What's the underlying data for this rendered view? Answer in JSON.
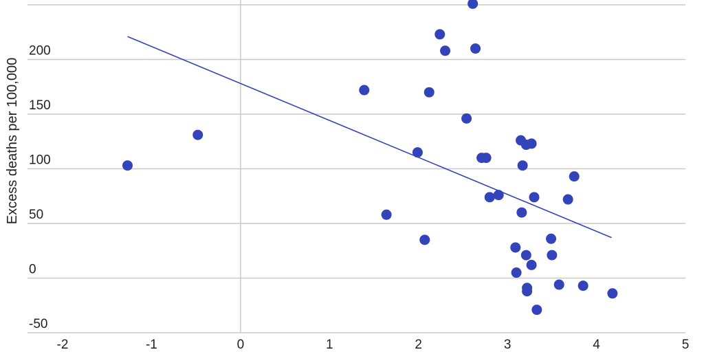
{
  "chart_data": {
    "type": "scatter",
    "title": "",
    "xlabel": "",
    "ylabel": "Excess deaths per 100,000",
    "xlim": [
      -2,
      5
    ],
    "ylim": [
      -50,
      250
    ],
    "x_ticks": [
      "-2",
      "-1",
      "0",
      "1",
      "2",
      "3",
      "4",
      "5"
    ],
    "y_ticks": [
      "-50",
      "0",
      "50",
      "100",
      "150",
      "200"
    ],
    "grid": "horizontal",
    "legend": "none",
    "point_color": "#3344bb",
    "trend_color": "#3344bb",
    "trendline": {
      "x": [
        -1.27,
        4.17
      ],
      "y": [
        221,
        37
      ]
    },
    "points": [
      {
        "x": -1.27,
        "y": 103
      },
      {
        "x": -0.48,
        "y": 131
      },
      {
        "x": 1.39,
        "y": 172
      },
      {
        "x": 1.64,
        "y": 58
      },
      {
        "x": 1.99,
        "y": 115
      },
      {
        "x": 2.07,
        "y": 35
      },
      {
        "x": 2.12,
        "y": 170
      },
      {
        "x": 2.24,
        "y": 223
      },
      {
        "x": 2.3,
        "y": 208
      },
      {
        "x": 2.54,
        "y": 146
      },
      {
        "x": 2.61,
        "y": 251
      },
      {
        "x": 2.64,
        "y": 210
      },
      {
        "x": 2.71,
        "y": 110
      },
      {
        "x": 2.76,
        "y": 110
      },
      {
        "x": 2.8,
        "y": 74
      },
      {
        "x": 2.9,
        "y": 76
      },
      {
        "x": 3.09,
        "y": 28
      },
      {
        "x": 3.1,
        "y": 5
      },
      {
        "x": 3.15,
        "y": 126
      },
      {
        "x": 3.16,
        "y": 60
      },
      {
        "x": 3.17,
        "y": 103
      },
      {
        "x": 3.21,
        "y": 122
      },
      {
        "x": 3.21,
        "y": 21
      },
      {
        "x": 3.22,
        "y": -9
      },
      {
        "x": 3.22,
        "y": -12
      },
      {
        "x": 3.27,
        "y": 123
      },
      {
        "x": 3.27,
        "y": 12
      },
      {
        "x": 3.3,
        "y": 74
      },
      {
        "x": 3.33,
        "y": -29
      },
      {
        "x": 3.49,
        "y": 36
      },
      {
        "x": 3.5,
        "y": 21
      },
      {
        "x": 3.58,
        "y": -6
      },
      {
        "x": 3.68,
        "y": 72
      },
      {
        "x": 3.75,
        "y": 93
      },
      {
        "x": 3.85,
        "y": -7
      },
      {
        "x": 4.18,
        "y": -14
      }
    ]
  }
}
